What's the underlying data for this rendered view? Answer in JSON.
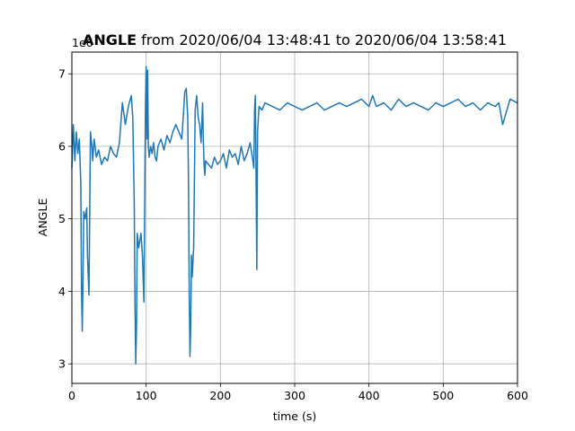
{
  "chart_data": {
    "type": "line",
    "title": {
      "bold": "ANGLE",
      "rest": " from 2020/06/04 13:48:41 to 2020/06/04 13:58:41"
    },
    "xlabel": "time (s)",
    "ylabel": "ANGLE",
    "y_offset_label": "1e6",
    "xlim": [
      0,
      600
    ],
    "ylim": [
      2.73,
      7.3
    ],
    "x_ticks": [
      0,
      100,
      200,
      300,
      400,
      500,
      600
    ],
    "x_tick_labels": [
      "0",
      "100",
      "200",
      "300",
      "400",
      "500",
      "600"
    ],
    "y_ticks": [
      3,
      4,
      5,
      6,
      7
    ],
    "y_tick_labels": [
      "3",
      "4",
      "5",
      "6",
      "7"
    ],
    "grid": true,
    "legend": "none",
    "series": [
      {
        "color": "#1f77b4",
        "x": [
          0,
          2,
          4,
          6,
          8,
          10,
          12,
          13,
          14,
          15,
          16,
          18,
          20,
          21,
          23,
          25,
          27,
          28,
          30,
          33,
          36,
          40,
          44,
          48,
          52,
          56,
          60,
          64,
          68,
          72,
          76,
          80,
          82,
          84,
          85,
          86,
          87,
          88,
          90,
          93,
          95,
          97,
          99,
          100,
          101,
          102,
          103,
          104,
          106,
          108,
          110,
          112,
          114,
          116,
          120,
          124,
          128,
          132,
          136,
          140,
          144,
          148,
          152,
          154,
          156,
          157,
          158,
          159,
          160,
          161,
          162,
          164,
          166,
          168,
          170,
          172,
          174,
          176,
          177,
          178,
          179,
          180,
          184,
          188,
          192,
          196,
          200,
          204,
          208,
          212,
          216,
          220,
          224,
          228,
          232,
          236,
          240,
          243,
          245,
          246,
          247,
          248,
          249,
          250,
          252,
          256,
          260,
          270,
          280,
          290,
          300,
          310,
          320,
          330,
          340,
          350,
          360,
          370,
          380,
          390,
          400,
          405,
          410,
          420,
          430,
          440,
          450,
          460,
          470,
          480,
          490,
          500,
          510,
          520,
          530,
          540,
          550,
          560,
          570,
          575,
          580,
          590,
          600
        ],
        "y": [
          5700000.0,
          6300000.0,
          5800000.0,
          6200000.0,
          5900000.0,
          6100000.0,
          5500000.0,
          4000000.0,
          3450000.0,
          4200000.0,
          5100000.0,
          5000000.0,
          5150000.0,
          4500000.0,
          3950000.0,
          6200000.0,
          6000000.0,
          5800000.0,
          6100000.0,
          5850000.0,
          5950000.0,
          5750000.0,
          5850000.0,
          5800000.0,
          6000000.0,
          5900000.0,
          5850000.0,
          6050000.0,
          6600000.0,
          6300000.0,
          6550000.0,
          6700000.0,
          6400000.0,
          5200000.0,
          3800000.0,
          3000000.0,
          3500000.0,
          4800000.0,
          4600000.0,
          4800000.0,
          4500000.0,
          3850000.0,
          6500000.0,
          7100000.0,
          6100000.0,
          7050000.0,
          6000000.0,
          5850000.0,
          6000000.0,
          5900000.0,
          6050000.0,
          5850000.0,
          5800000.0,
          6000000.0,
          6100000.0,
          5950000.0,
          6150000.0,
          6050000.0,
          6200000.0,
          6300000.0,
          6200000.0,
          6100000.0,
          6750000.0,
          6800000.0,
          6400000.0,
          5500000.0,
          4000000.0,
          3100000.0,
          3500000.0,
          4500000.0,
          4200000.0,
          4600000.0,
          6500000.0,
          6700000.0,
          6400000.0,
          6300000.0,
          6050000.0,
          6600000.0,
          6100000.0,
          5750000.0,
          5600000.0,
          5800000.0,
          5750000.0,
          5700000.0,
          5850000.0,
          5750000.0,
          5800000.0,
          5900000.0,
          5700000.0,
          5950000.0,
          5850000.0,
          5900000.0,
          5750000.0,
          6000000.0,
          5800000.0,
          5900000.0,
          6050000.0,
          5850000.0,
          5700000.0,
          6500000.0,
          6700000.0,
          5600000.0,
          4300000.0,
          6200000.0,
          6550000.0,
          6500000.0,
          6600000.0,
          6550000.0,
          6500000.0,
          6600000.0,
          6550000.0,
          6500000.0,
          6550000.0,
          6600000.0,
          6500000.0,
          6550000.0,
          6600000.0,
          6550000.0,
          6600000.0,
          6650000.0,
          6550000.0,
          6700000.0,
          6550000.0,
          6600000.0,
          6500000.0,
          6650000.0,
          6550000.0,
          6600000.0,
          6550000.0,
          6500000.0,
          6600000.0,
          6550000.0,
          6600000.0,
          6650000.0,
          6550000.0,
          6600000.0,
          6500000.0,
          6600000.0,
          6550000.0,
          6600000.0,
          6300000.0,
          6650000.0,
          6600000.0
        ]
      }
    ]
  }
}
